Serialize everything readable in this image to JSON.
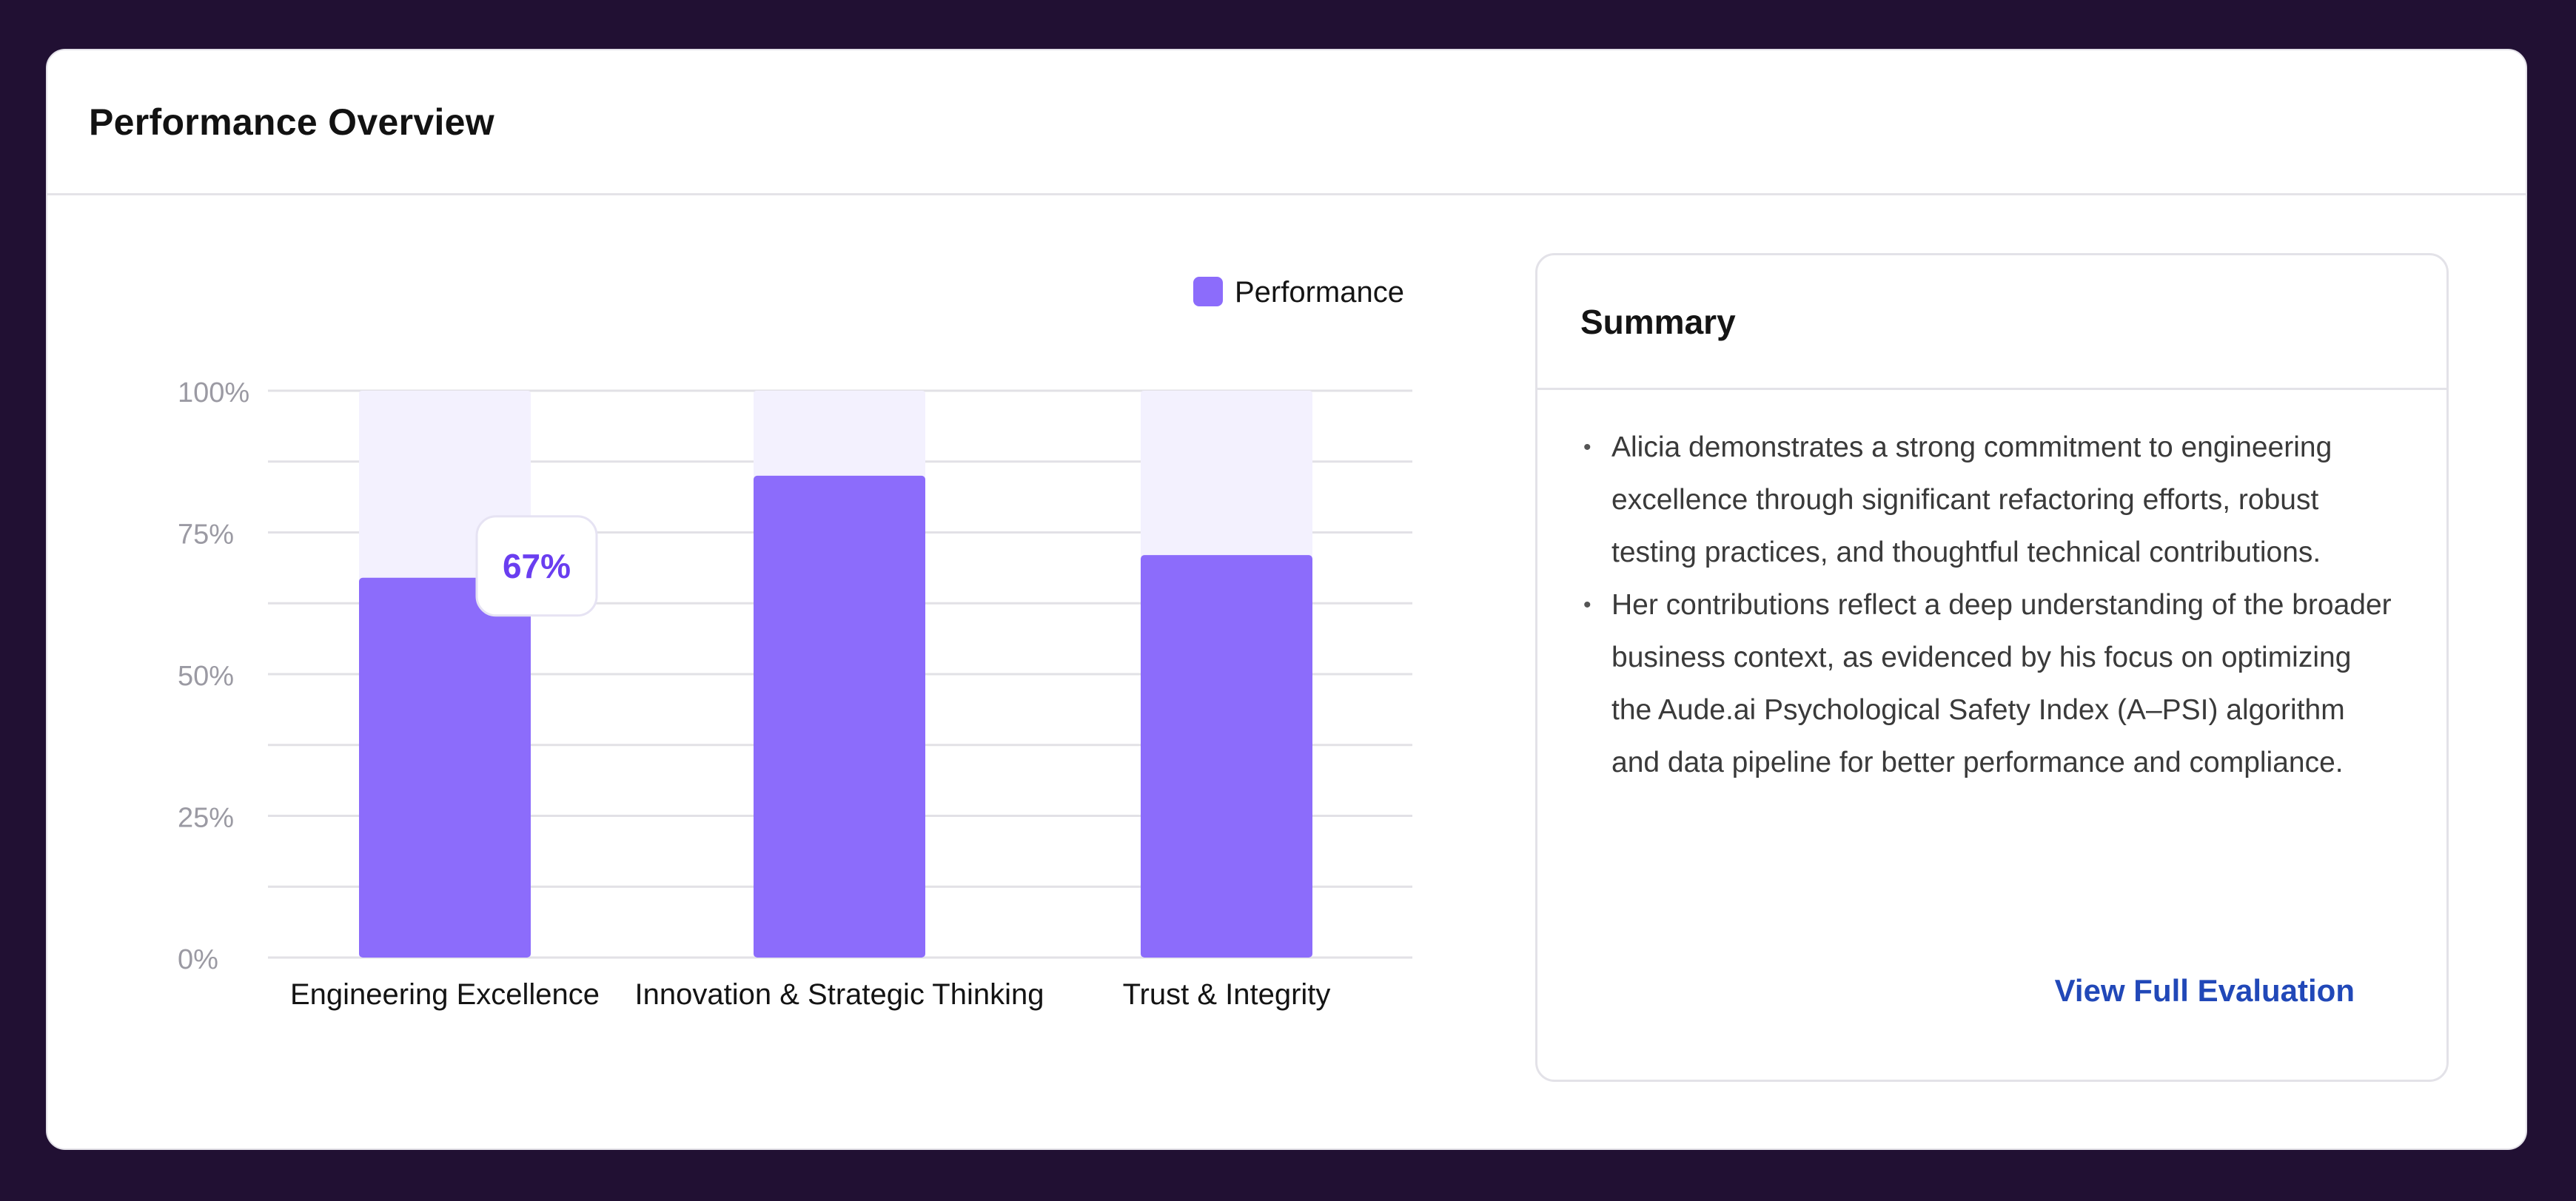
{
  "header": {
    "title": "Performance  Overview"
  },
  "chart_data": {
    "type": "bar",
    "categories": [
      "Engineering Excellence",
      "Innovation & Strategic Thinking",
      "Trust & Integrity"
    ],
    "series": [
      {
        "name": "Performance",
        "values": [
          67,
          85,
          71
        ],
        "color": "#8c6cfb"
      }
    ],
    "ylim": [
      0,
      100
    ],
    "yticks": [
      "100%",
      "75%",
      "50%",
      "25%",
      "0%"
    ],
    "ytick_values": [
      100,
      75,
      50,
      25,
      0
    ],
    "track_color": "#f3f1fe",
    "legend_position": "top-right",
    "grid": true,
    "tooltip": {
      "category_index": 0,
      "text": "67%",
      "color": "#6a3ef0"
    }
  },
  "summary": {
    "title": "Summary",
    "items": [
      "Alicia demonstrates a strong commitment to engineering excellence through significant refactoring efforts, robust testing practices, and thoughtful technical contributions.",
      "Her contributions reflect a deep understanding of the broader business context, as evidenced by his focus on optimizing the Aude.ai Psychological Safety Index (A–PSI) algorithm and data pipeline for better performance and compliance."
    ],
    "bullet": "•",
    "link_label": "View Full Evaluation"
  }
}
